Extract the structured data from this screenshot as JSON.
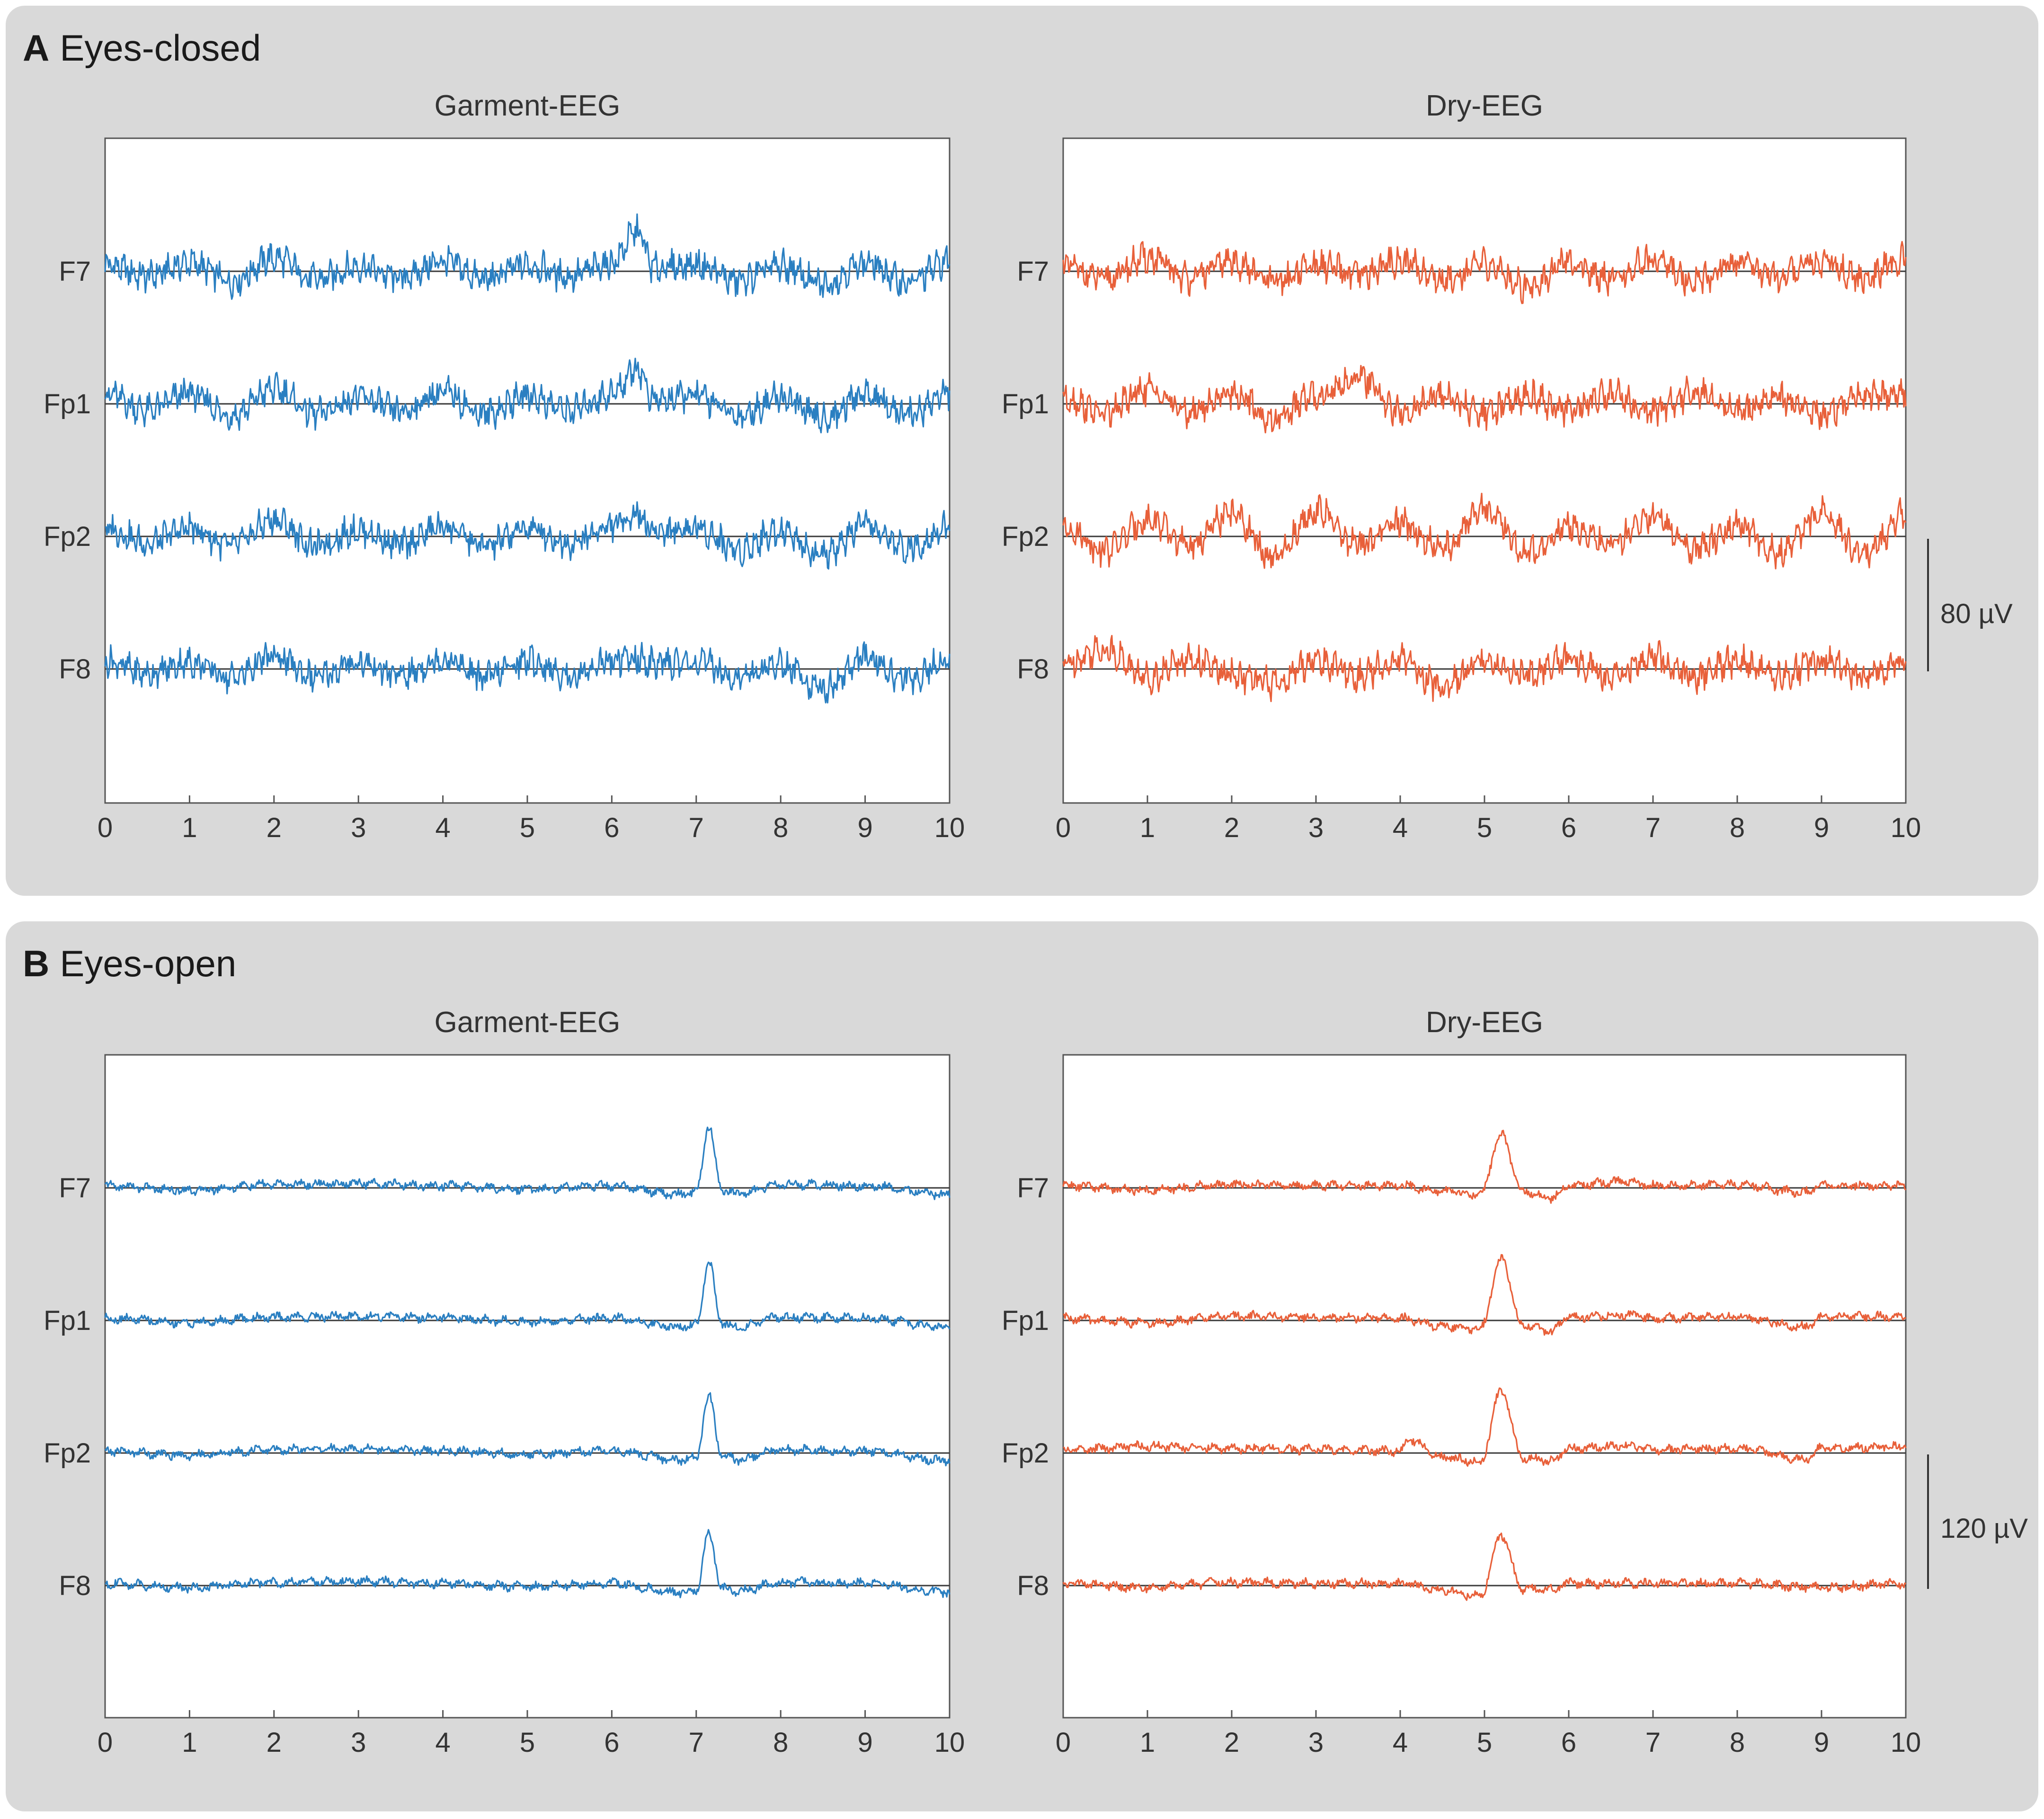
{
  "figure": {
    "panels": [
      {
        "letter": "A",
        "title": "Eyes-closed",
        "scale_bar_label": "80 µV"
      },
      {
        "letter": "B",
        "title": "Eyes-open",
        "scale_bar_label": "120 µV"
      }
    ]
  },
  "colors": {
    "garment": "#2a7fc1",
    "dry": "#e8603a",
    "baseline": "#3a3a3a",
    "axis": "#555555",
    "panel_background": "#d9d9d9"
  },
  "chart_data": [
    {
      "type": "line",
      "panel": "A",
      "title": "Garment-EEG",
      "channels": [
        "F7",
        "Fp1",
        "Fp2",
        "F8"
      ],
      "xlim": [
        0,
        10
      ],
      "xticks": [
        0,
        1,
        2,
        3,
        4,
        5,
        6,
        7,
        8,
        9,
        10
      ],
      "scale_uV": 80,
      "series": [
        {
          "name": "F7",
          "x": [
            0,
            0.5,
            1,
            1.5,
            2,
            2.5,
            3,
            3.5,
            4,
            4.5,
            5,
            5.5,
            6,
            6.3,
            6.5,
            7,
            7.5,
            8,
            8.5,
            9,
            9.5,
            10
          ],
          "y": [
            4,
            -3,
            5,
            -6,
            8,
            -5,
            3,
            -4,
            6,
            -5,
            4,
            -3,
            5,
            24,
            2,
            4,
            -6,
            3,
            -8,
            5,
            -7,
            6
          ]
        },
        {
          "name": "Fp1",
          "x": [
            0,
            0.5,
            1,
            1.5,
            2,
            2.5,
            3,
            3.5,
            4,
            4.5,
            5,
            5.5,
            6,
            6.3,
            6.5,
            7,
            7.5,
            8,
            8.5,
            9,
            9.5,
            10
          ],
          "y": [
            6,
            -4,
            6,
            -7,
            9,
            -6,
            4,
            -5,
            7,
            -6,
            5,
            -4,
            6,
            22,
            2,
            5,
            -7,
            4,
            -9,
            6,
            -7,
            7
          ]
        },
        {
          "name": "Fp2",
          "x": [
            0,
            0.5,
            1,
            1.5,
            2,
            2.5,
            3,
            3.5,
            4,
            4.5,
            5,
            5.5,
            6,
            6.3,
            6.5,
            7,
            7.5,
            8,
            8.5,
            9,
            9.5,
            10
          ],
          "y": [
            5,
            -4,
            5,
            -6,
            10,
            -6,
            4,
            -5,
            6,
            -6,
            5,
            -4,
            6,
            14,
            3,
            5,
            -8,
            4,
            -12,
            6,
            -7,
            6
          ]
        },
        {
          "name": "F8",
          "x": [
            0,
            0.5,
            1,
            1.5,
            2,
            2.5,
            3,
            3.5,
            4,
            4.5,
            5,
            5.5,
            6,
            6.3,
            6.5,
            7,
            7.5,
            8,
            8.5,
            9,
            9.5,
            10
          ],
          "y": [
            5,
            -3,
            4,
            -5,
            7,
            -5,
            4,
            -4,
            6,
            -5,
            5,
            -4,
            5,
            6,
            3,
            4,
            -5,
            3,
            -12,
            6,
            -6,
            5
          ]
        }
      ]
    },
    {
      "type": "line",
      "panel": "A",
      "title": "Dry-EEG",
      "channels": [
        "F7",
        "Fp1",
        "Fp2",
        "F8"
      ],
      "xlim": [
        0,
        10
      ],
      "xticks": [
        0,
        1,
        2,
        3,
        4,
        5,
        6,
        7,
        8,
        9,
        10
      ],
      "scale_uV": 80,
      "series": [
        {
          "name": "F7",
          "x": [
            0,
            0.5,
            1,
            1.5,
            2,
            2.5,
            3,
            3.5,
            4,
            4.5,
            5,
            5.5,
            6,
            6.5,
            7,
            7.5,
            8,
            8.5,
            9,
            9.5,
            10
          ],
          "y": [
            3,
            -5,
            8,
            -4,
            6,
            -7,
            4,
            -3,
            6,
            -5,
            4,
            -9,
            5,
            -4,
            7,
            -6,
            5,
            -3,
            6,
            -5,
            8
          ]
        },
        {
          "name": "Fp1",
          "x": [
            0,
            0.5,
            1,
            1.5,
            2,
            2.5,
            3,
            3.5,
            4,
            4.5,
            5,
            5.5,
            6,
            6.5,
            7,
            7.5,
            8,
            8.5,
            9,
            9.5,
            10
          ],
          "y": [
            4,
            -6,
            9,
            -5,
            7,
            -10,
            5,
            16,
            -5,
            4,
            -6,
            5,
            -4,
            6,
            -5,
            7,
            -5,
            4,
            -6,
            5,
            6
          ]
        },
        {
          "name": "Fp2",
          "x": [
            0,
            0.5,
            1,
            1.5,
            2,
            2.5,
            3,
            3.5,
            4,
            4.5,
            5,
            5.5,
            6,
            6.5,
            7,
            7.5,
            8,
            8.5,
            9,
            9.5,
            10
          ],
          "y": [
            6,
            -8,
            10,
            -6,
            14,
            -14,
            16,
            -6,
            8,
            -7,
            16,
            -10,
            6,
            -5,
            12,
            -8,
            6,
            -10,
            14,
            -12,
            14
          ]
        },
        {
          "name": "F8",
          "x": [
            0,
            0.5,
            1,
            1.5,
            2,
            2.5,
            3,
            3.5,
            4,
            4.5,
            5,
            5.5,
            6,
            6.5,
            7,
            7.5,
            8,
            8.5,
            9,
            9.5,
            10
          ],
          "y": [
            4,
            12,
            -5,
            6,
            -4,
            -9,
            5,
            -4,
            6,
            -11,
            5,
            -4,
            6,
            -5,
            7,
            -5,
            5,
            -4,
            6,
            -5,
            5
          ]
        }
      ]
    },
    {
      "type": "line",
      "panel": "B",
      "title": "Garment-EEG",
      "channels": [
        "F7",
        "Fp1",
        "Fp2",
        "F8"
      ],
      "xlim": [
        0,
        10
      ],
      "xticks": [
        0,
        1,
        2,
        3,
        4,
        5,
        6,
        7,
        8,
        9,
        10
      ],
      "scale_uV": 120,
      "series": [
        {
          "name": "F7",
          "x": [
            0,
            1,
            2,
            3,
            4,
            5,
            6,
            6.8,
            7.0,
            7.15,
            7.3,
            7.5,
            8,
            9,
            10
          ],
          "y": [
            2,
            -2,
            3,
            4,
            2,
            -1,
            2,
            -6,
            -4,
            56,
            -2,
            -5,
            3,
            2,
            -6
          ]
        },
        {
          "name": "Fp1",
          "x": [
            0,
            1,
            2,
            3,
            4,
            5,
            6,
            6.8,
            7.0,
            7.15,
            7.3,
            7.5,
            8,
            9,
            10
          ],
          "y": [
            2,
            -2,
            3,
            4,
            2,
            -1,
            2,
            -6,
            -4,
            52,
            -2,
            -6,
            3,
            2,
            -6
          ]
        },
        {
          "name": "Fp2",
          "x": [
            0,
            1,
            2,
            3,
            4,
            5,
            6,
            6.8,
            7.0,
            7.15,
            7.3,
            7.5,
            8,
            9,
            10
          ],
          "y": [
            2,
            -2,
            3,
            4,
            2,
            -1,
            2,
            -6,
            -4,
            52,
            -2,
            -6,
            3,
            2,
            -7
          ]
        },
        {
          "name": "F8",
          "x": [
            0,
            1,
            2,
            3,
            4,
            5,
            6,
            6.8,
            7.0,
            7.15,
            7.3,
            7.5,
            8,
            9,
            10
          ],
          "y": [
            2,
            -2,
            3,
            4,
            2,
            -1,
            2,
            -6,
            -4,
            46,
            -2,
            -5,
            3,
            2,
            -6
          ]
        }
      ]
    },
    {
      "type": "line",
      "panel": "B",
      "title": "Dry-EEG",
      "channels": [
        "F7",
        "Fp1",
        "Fp2",
        "F8"
      ],
      "xlim": [
        0,
        10
      ],
      "xticks": [
        0,
        1,
        2,
        3,
        4,
        5,
        6,
        7,
        8,
        9,
        10
      ],
      "scale_uV": 120,
      "series": [
        {
          "name": "F7",
          "x": [
            0,
            1,
            2,
            3,
            4,
            4.5,
            4.95,
            5.2,
            5.45,
            5.8,
            6,
            6.7,
            7,
            8,
            8.8,
            9,
            10
          ],
          "y": [
            2,
            -2,
            3,
            2,
            2,
            -3,
            -6,
            48,
            -4,
            -9,
            2,
            6,
            2,
            3,
            -4,
            2,
            2
          ]
        },
        {
          "name": "Fp1",
          "x": [
            0,
            1,
            2,
            3,
            4,
            4.5,
            4.95,
            5.2,
            5.45,
            5.8,
            6,
            6.7,
            7,
            8,
            8.8,
            9,
            10
          ],
          "y": [
            2,
            -2,
            4,
            3,
            2,
            -5,
            -8,
            56,
            -4,
            -10,
            3,
            5,
            2,
            3,
            -6,
            3,
            4
          ]
        },
        {
          "name": "Fp2",
          "x": [
            0,
            1,
            2,
            3,
            4,
            4.1,
            4.5,
            4.95,
            5.2,
            5.45,
            5.8,
            6,
            6.7,
            7,
            8,
            8.8,
            9,
            10
          ],
          "y": [
            3,
            6,
            4,
            3,
            2,
            12,
            -4,
            -8,
            56,
            -4,
            -7,
            4,
            6,
            3,
            4,
            -6,
            4,
            6
          ]
        },
        {
          "name": "F8",
          "x": [
            0,
            1,
            2,
            3,
            4,
            4.5,
            4.95,
            5.2,
            5.45,
            5.8,
            6,
            7,
            8,
            9,
            10
          ],
          "y": [
            2,
            -2,
            3,
            2,
            2,
            -4,
            -10,
            46,
            -3,
            -4,
            2,
            2,
            2,
            -2,
            2
          ]
        }
      ]
    }
  ]
}
